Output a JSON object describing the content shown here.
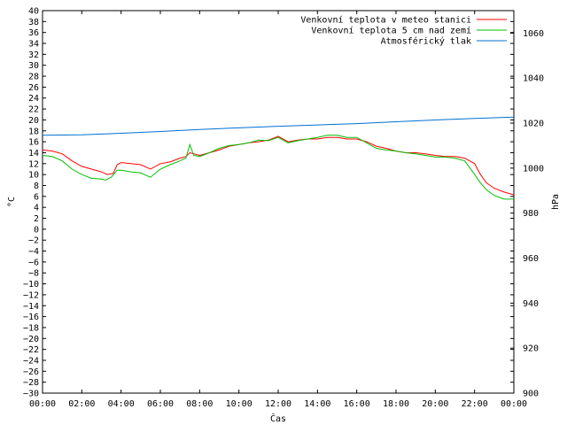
{
  "chart_data": {
    "type": "line",
    "xlabel": "Čas",
    "ylabel_left": "°C",
    "ylabel_right": "hPa",
    "x_ticks": [
      "00:00",
      "02:00",
      "04:00",
      "06:00",
      "08:00",
      "10:00",
      "12:00",
      "14:00",
      "16:00",
      "18:00",
      "20:00",
      "22:00",
      "00:00"
    ],
    "x_range_hours": [
      0,
      24
    ],
    "ylim_left": [
      -30,
      40
    ],
    "y_left_step": 2,
    "ylim_right": [
      900,
      1070
    ],
    "y_right_ticks": [
      900,
      920,
      940,
      960,
      980,
      1000,
      1020,
      1040,
      1060
    ],
    "grid": false,
    "legend_position": "top-right",
    "series": [
      {
        "name": "Venkovní teplota v meteo stanici",
        "axis": "left",
        "color": "#ff0000",
        "x": [
          0,
          0.5,
          1,
          1.5,
          2,
          2.5,
          3,
          3.3,
          3.6,
          3.8,
          4,
          4.5,
          5,
          5.5,
          6,
          6.5,
          7,
          7.3,
          7.5,
          7.7,
          8,
          8.5,
          9,
          9.5,
          10,
          10.5,
          11,
          11.5,
          12,
          12.5,
          13,
          13.5,
          14,
          14.5,
          15,
          15.5,
          16,
          16.5,
          17,
          17.5,
          18,
          18.5,
          19,
          19.5,
          20,
          20.5,
          21,
          21.5,
          22,
          22.3,
          22.6,
          23,
          23.5,
          24
        ],
        "y": [
          14.5,
          14.3,
          13.8,
          12.5,
          11.5,
          11,
          10.5,
          10,
          10.2,
          11.8,
          12.2,
          12,
          11.8,
          11,
          12,
          12.3,
          13,
          13.3,
          14,
          13.8,
          13.5,
          14,
          14.5,
          15.2,
          15.5,
          15.8,
          16,
          16.3,
          17,
          16,
          16.3,
          16.5,
          16.5,
          16.8,
          16.8,
          16.5,
          16.5,
          16,
          15.2,
          14.8,
          14.3,
          14,
          14,
          13.8,
          13.5,
          13.3,
          13.3,
          13,
          12,
          10,
          8.5,
          7.5,
          6.8,
          6.3
        ]
      },
      {
        "name": "Venkovní teplota 5 cm nad zemí",
        "axis": "left",
        "color": "#00c000",
        "x": [
          0,
          0.5,
          1,
          1.5,
          2,
          2.5,
          3,
          3.2,
          3.5,
          3.8,
          4,
          4.5,
          5,
          5.5,
          6,
          6.5,
          7,
          7.3,
          7.5,
          7.7,
          8,
          8.5,
          9,
          9.5,
          10,
          10.5,
          11,
          11.5,
          12,
          12.5,
          13,
          13.5,
          14,
          14.5,
          15,
          15.5,
          16,
          16.5,
          17,
          17.5,
          18,
          18.5,
          19,
          19.5,
          20,
          20.5,
          21,
          21.5,
          22,
          22.3,
          22.6,
          23,
          23.5,
          24
        ],
        "y": [
          13.5,
          13.3,
          12.5,
          11,
          10,
          9.3,
          9.2,
          9,
          9.5,
          10.8,
          10.8,
          10.5,
          10.3,
          9.5,
          11,
          11.8,
          12.5,
          13,
          15.5,
          13.5,
          13.3,
          14,
          14.8,
          15.3,
          15.5,
          15.8,
          16.3,
          16.2,
          16.8,
          15.8,
          16.2,
          16.5,
          16.8,
          17.2,
          17.2,
          16.8,
          16.8,
          15.8,
          14.8,
          14.5,
          14.3,
          14,
          13.8,
          13.5,
          13.2,
          13.2,
          13,
          12.5,
          10,
          8.5,
          7.2,
          6.2,
          5.5,
          5.5
        ]
      },
      {
        "name": "Atmosférický tlak",
        "axis": "right",
        "color": "#0070d0",
        "x": [
          0,
          2,
          4,
          6,
          8,
          10,
          12,
          14,
          16,
          18,
          20,
          22,
          24
        ],
        "y": [
          1014.6,
          1014.8,
          1015.5,
          1016.3,
          1017.2,
          1017.9,
          1018.6,
          1019.2,
          1019.8,
          1020.6,
          1021.4,
          1022.1,
          1022.7
        ]
      }
    ]
  }
}
